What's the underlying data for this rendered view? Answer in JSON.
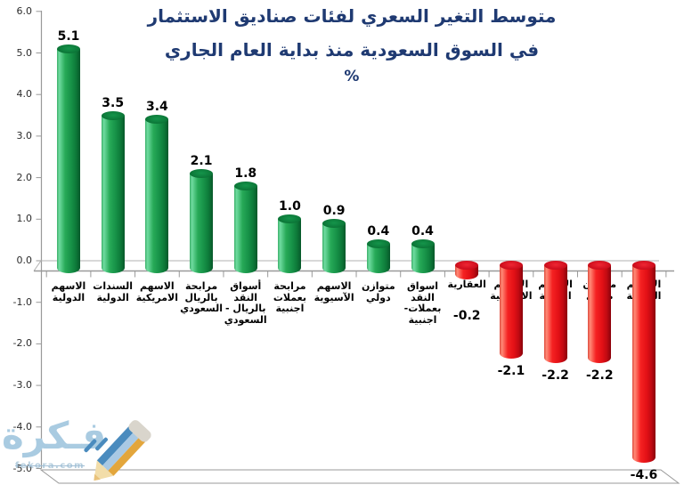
{
  "chart_data": {
    "type": "bar",
    "style": "3d-cylinder",
    "title_line1": "متوسط التغير السعري لفئات صناديق الاستثمار",
    "title_line2": "في السوق السعودية منذ بداية العام الجاري",
    "unit_label": "%",
    "xlabel": "",
    "ylabel": "",
    "ylim": [
      -5,
      6
    ],
    "grid": "zero-line-only",
    "legend": "none",
    "yticks": [
      "6.0",
      "5.0",
      "4.0",
      "3.0",
      "2.0",
      "1.0",
      "0.0",
      "-1.0",
      "-2.0",
      "-3.0",
      "-4.0",
      "-5.0"
    ],
    "categories": [
      "الاسهم الدولية",
      "السندات الدولية",
      "الاسهم الامريكية",
      "مرابحة بالريال السعودي",
      "أسواق النقد - بالريال السعودي",
      "مرابحة بعملات اجنبية",
      "الاسهم الآسيوية",
      "متوازن دولي",
      "اسواق النقد -بعملات اجنبية",
      "العقارية",
      "الاسهم الاوروبية",
      "الأسهم العربية",
      "متوازن محلي",
      "الاسهم المحلية"
    ],
    "category_lines": [
      [
        "الاسهم",
        "الدولية"
      ],
      [
        "السندات",
        "الدولية"
      ],
      [
        "الاسهم",
        "الامريكية"
      ],
      [
        "مرابحة",
        "بالريال",
        "السعودي"
      ],
      [
        "أسواق",
        "النقد",
        "- بالريال",
        "السعودي"
      ],
      [
        "مرابحة",
        "بعملات",
        "اجنبية"
      ],
      [
        "الاسهم",
        "الآسيوية"
      ],
      [
        "متوازن",
        "دولي"
      ],
      [
        "اسواق",
        "النقد",
        "-بعملات",
        "اجنبية"
      ],
      [
        "العقارية"
      ],
      [
        "الاسهم",
        "الاوروبية"
      ],
      [
        "الأسهم",
        "العربية"
      ],
      [
        "متوازن",
        "محلي"
      ],
      [
        "الاسهم",
        "المحلية"
      ]
    ],
    "values": [
      5.1,
      3.5,
      3.4,
      2.1,
      1.8,
      1.0,
      0.9,
      0.4,
      0.4,
      -0.2,
      -2.1,
      -2.2,
      -2.2,
      -4.6
    ],
    "value_labels": [
      "5.1",
      "3.5",
      "3.4",
      "2.1",
      "1.8",
      "1.0",
      "0.9",
      "0.4",
      "0.4",
      "-0.2",
      "-2.1",
      "-2.2",
      "-2.2",
      "-4.6"
    ]
  },
  "colors": {
    "positive_bar": "#1aa14e",
    "negative_bar": "#e8101c",
    "title": "#1f3a72",
    "axis": "#999999",
    "zero_line": "#b0b0b0",
    "value_label": "#000000",
    "category_label": "#000000",
    "watermark": "#a9cbe1",
    "pencil_blue": "#4a8bbe",
    "pencil_light_blue": "#a9c9e4",
    "pencil_orange": "#e3a63c"
  },
  "watermark": {
    "name": "فـكرة",
    "domain": "fekora.com"
  }
}
